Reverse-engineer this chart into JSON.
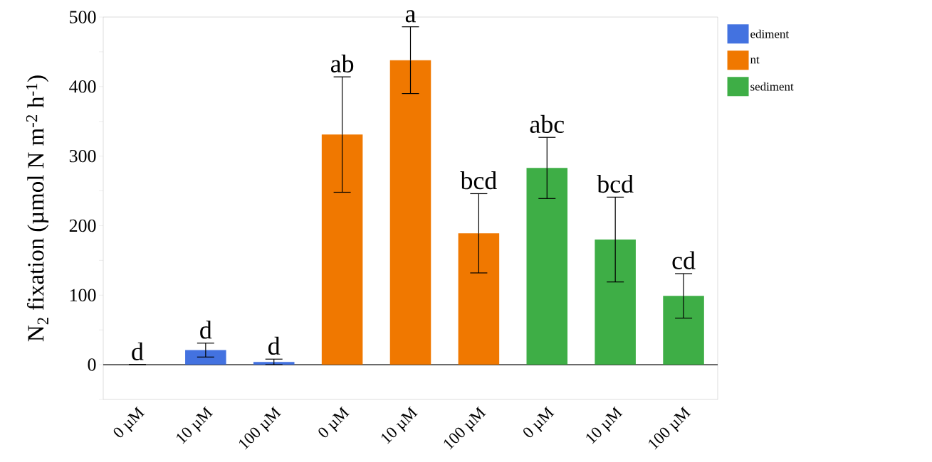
{
  "chart_data": {
    "type": "bar",
    "ylabel": "N$_{2}$ fixation (µmol N m$^{-2}$ h$^{-1}$)",
    "categories": [
      "0 µM",
      "10 µM",
      "100 µM",
      "0 µM",
      "10 µM",
      "100 µM",
      "0 µM",
      "10 µM",
      "100 µM"
    ],
    "series": [
      {
        "name": "ediment",
        "color": "#4372e0",
        "values": [
          0,
          21,
          4,
          null,
          null,
          null,
          null,
          null,
          null
        ],
        "errors": [
          0,
          10,
          4,
          null,
          null,
          null,
          null,
          null,
          null
        ]
      },
      {
        "name": "nt",
        "color": "#f07800",
        "values": [
          null,
          null,
          null,
          331,
          438,
          189,
          null,
          null,
          null
        ],
        "errors": [
          null,
          null,
          null,
          83,
          48,
          57,
          null,
          null,
          null
        ]
      },
      {
        "name": "sediment",
        "color": "#3eae46",
        "values": [
          null,
          null,
          null,
          null,
          null,
          null,
          283,
          180,
          99
        ],
        "errors": [
          null,
          null,
          null,
          null,
          null,
          null,
          44,
          61,
          32
        ]
      }
    ],
    "annotations": [
      "d",
      "d",
      "d",
      "ab",
      "a",
      "bcd",
      "abc",
      "bcd",
      "cd"
    ],
    "ylim": [
      -50,
      500
    ],
    "yticks": [
      {
        "value": -50,
        "label": null
      },
      0,
      {
        "value": 50,
        "label": null
      },
      100,
      {
        "value": 150,
        "label": null
      },
      200,
      {
        "value": 250,
        "label": null
      },
      300,
      {
        "value": 350,
        "label": null
      },
      400,
      {
        "value": 450,
        "label": null
      },
      500
    ],
    "legend": "top right"
  }
}
